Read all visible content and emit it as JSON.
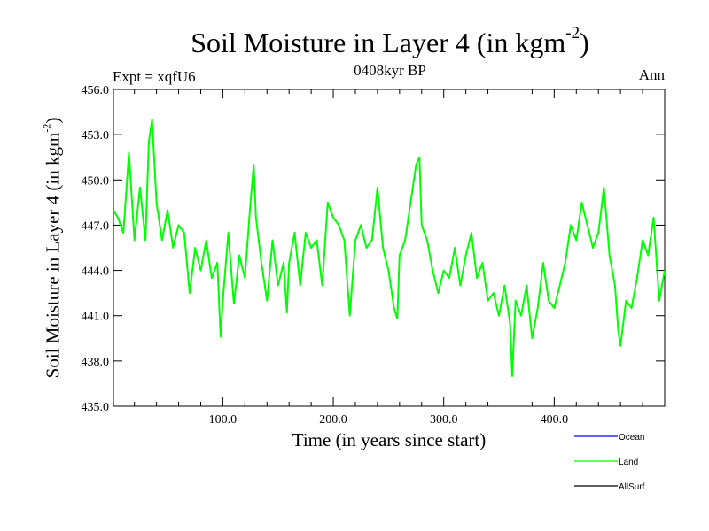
{
  "chart_data": {
    "type": "line",
    "title": "Soil Moisture in Layer 4 (in kgm",
    "title_sup": "-2",
    "title_close": ")",
    "subtitle": "0408kyr BP",
    "top_left_label": "Expt = xqfU6",
    "top_right_label": "Ann",
    "xlabel": "Time (in years since start)",
    "ylabel": "Soil Moisture in Layer 4 (in kgm",
    "ylabel_sup": "-2",
    "ylabel_close": ")",
    "xlim": [
      1,
      500
    ],
    "ylim": [
      435.0,
      456.0
    ],
    "xticks": [
      100,
      200,
      300,
      400
    ],
    "xtick_labels": [
      "100.0",
      "200.0",
      "300.0",
      "400.0"
    ],
    "yticks": [
      435,
      438,
      441,
      444,
      447,
      450,
      453,
      456
    ],
    "ytick_labels": [
      "435.0",
      "438.0",
      "441.0",
      "444.0",
      "447.0",
      "450.0",
      "453.0",
      "456.0"
    ],
    "series": [
      {
        "name": "Ocean",
        "color": "#0000ff",
        "x": [],
        "values": []
      },
      {
        "name": "Land",
        "color": "#00ff00",
        "x": [
          1,
          5,
          10,
          15,
          20,
          25,
          30,
          33,
          36,
          40,
          45,
          50,
          55,
          60,
          65,
          70,
          75,
          80,
          85,
          90,
          95,
          98,
          100,
          105,
          110,
          115,
          120,
          125,
          128,
          130,
          135,
          140,
          145,
          150,
          155,
          158,
          160,
          165,
          170,
          175,
          180,
          185,
          190,
          195,
          200,
          205,
          210,
          215,
          220,
          225,
          230,
          235,
          240,
          245,
          250,
          255,
          258,
          260,
          265,
          270,
          275,
          278,
          280,
          285,
          290,
          295,
          300,
          305,
          310,
          315,
          320,
          325,
          330,
          335,
          340,
          345,
          350,
          355,
          360,
          362,
          365,
          370,
          375,
          380,
          385,
          390,
          395,
          400,
          405,
          410,
          415,
          420,
          425,
          430,
          435,
          440,
          445,
          450,
          455,
          458,
          460,
          465,
          470,
          475,
          480,
          485,
          490,
          495,
          500
        ],
        "values": [
          448.0,
          447.5,
          446.5,
          451.8,
          446.0,
          449.5,
          446.0,
          452.5,
          454.0,
          448.5,
          446.0,
          448.0,
          445.5,
          447.0,
          446.5,
          442.5,
          445.5,
          444.0,
          446.0,
          443.5,
          444.5,
          439.6,
          442.0,
          446.5,
          441.8,
          445.0,
          443.5,
          448.5,
          451.0,
          447.5,
          444.5,
          442.0,
          446.0,
          443.0,
          444.5,
          441.2,
          444.5,
          446.5,
          443.0,
          446.5,
          445.5,
          446.0,
          443.0,
          448.5,
          447.5,
          447.0,
          446.0,
          441.0,
          446.0,
          447.0,
          445.5,
          446.0,
          449.5,
          445.5,
          444.0,
          441.5,
          440.8,
          445.0,
          446.0,
          448.5,
          451.0,
          451.5,
          447.0,
          446.0,
          444.0,
          442.5,
          444.0,
          443.5,
          445.5,
          443.0,
          445.0,
          446.5,
          443.5,
          444.5,
          442.0,
          442.5,
          441.0,
          443.0,
          440.5,
          437.0,
          442.0,
          441.0,
          443.0,
          439.5,
          441.5,
          444.5,
          442.0,
          441.5,
          443.0,
          444.5,
          447.0,
          446.0,
          448.5,
          447.0,
          445.5,
          446.5,
          449.5,
          445.0,
          443.0,
          440.0,
          439.0,
          442.0,
          441.5,
          443.5,
          446.0,
          445.0,
          447.5,
          442.0,
          444.0
        ]
      },
      {
        "name": "AllSurf",
        "color": "#000000",
        "x": [],
        "values": []
      }
    ],
    "legend_position": "bottom-right"
  }
}
